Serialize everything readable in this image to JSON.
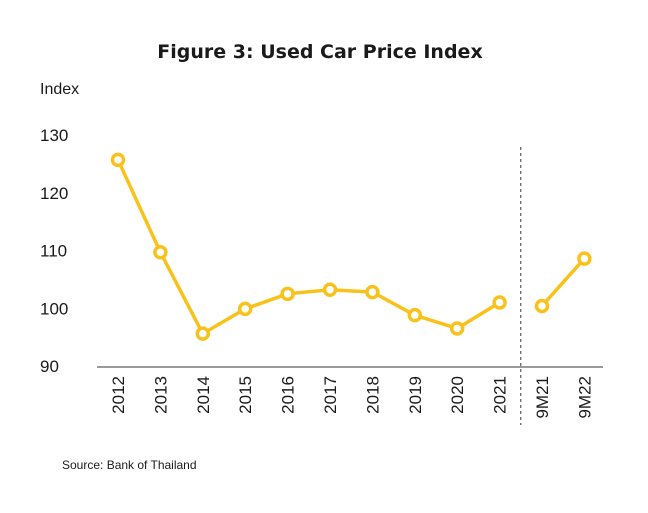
{
  "chart_data": {
    "type": "line",
    "title": "Figure 3: Used Car Price Index",
    "ylabel": "Index",
    "xlabel": "",
    "source": "Source: Bank  of Thailand",
    "ylim": [
      90,
      130
    ],
    "yticks": [
      "130",
      "120",
      "110",
      "100",
      "90"
    ],
    "grid": false,
    "line_color": "#f9c21b",
    "categories": [
      "2012",
      "2013",
      "2014",
      "2015",
      "2016",
      "2017",
      "2018",
      "2019",
      "2020",
      "2021",
      "9M21",
      "9M22"
    ],
    "segments": [
      {
        "x": [
          "2012",
          "2013",
          "2014",
          "2015",
          "2016",
          "2017",
          "2018",
          "2019",
          "2020",
          "2021"
        ],
        "values": [
          125.7,
          109.7,
          95.6,
          99.9,
          102.5,
          103.2,
          102.8,
          98.8,
          96.5,
          101.0
        ]
      },
      {
        "x": [
          "9M21",
          "9M22"
        ],
        "values": [
          100.4,
          108.6
        ]
      }
    ],
    "divider_after": "2021"
  }
}
